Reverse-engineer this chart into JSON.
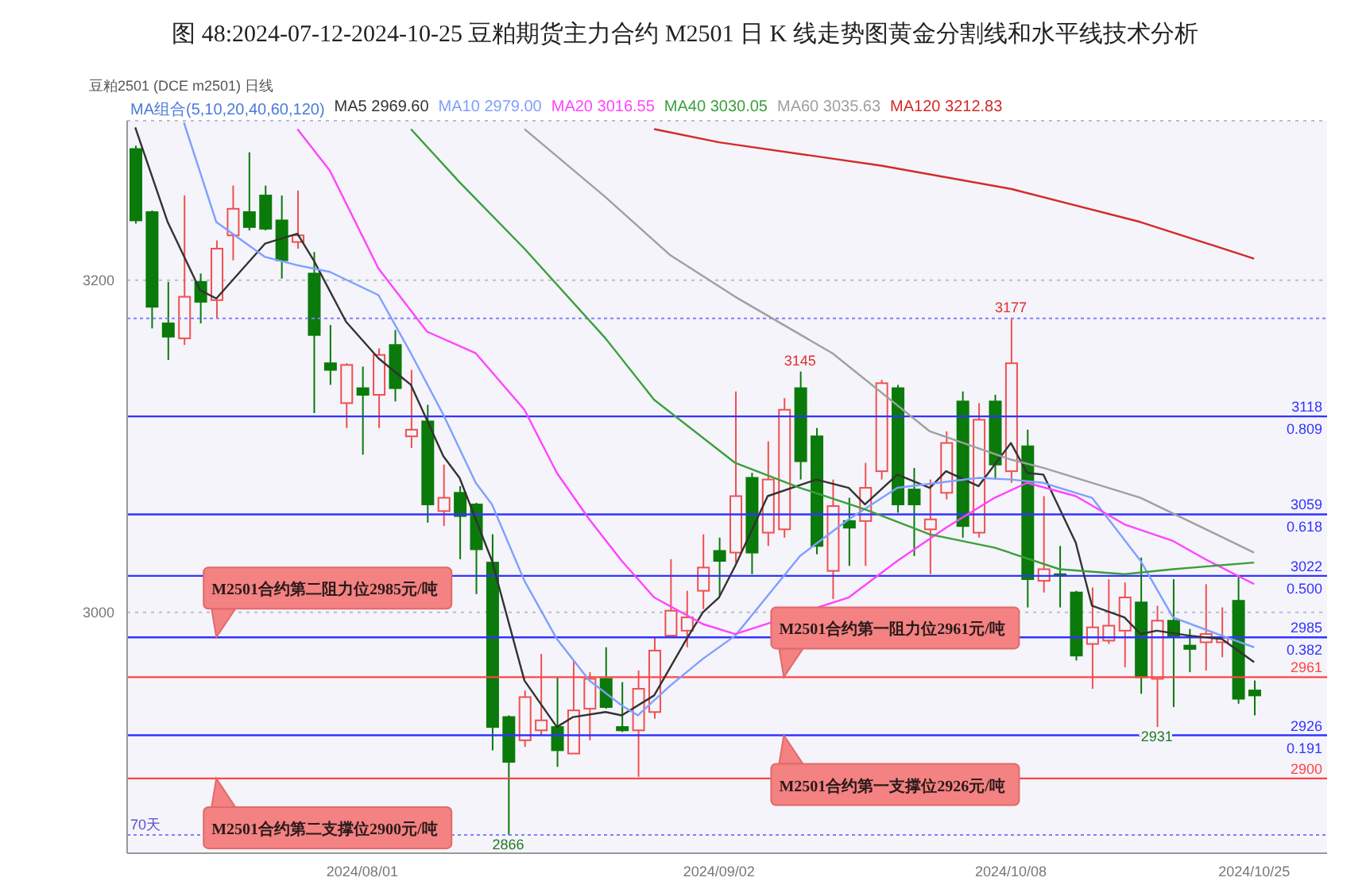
{
  "chart_data": {
    "type": "candlestick",
    "title": "图 48:2024-07-12-2024-10-25 豆粕期货主力合约 M2501 日 K 线走势图黄金分割线和水平线技术分析",
    "subtitle": "豆粕2501 (DCE m2501)  日线",
    "legend_title": "MA组合(5,10,20,40,60,120)",
    "legend": "top",
    "categories": [
      null,
      null,
      null,
      null,
      null,
      null,
      null,
      null,
      null,
      null,
      null,
      null,
      null,
      null,
      "2024/08/01",
      null,
      null,
      null,
      null,
      null,
      null,
      null,
      null,
      null,
      null,
      null,
      null,
      null,
      null,
      null,
      null,
      null,
      null,
      null,
      null,
      null,
      "2024/09/02",
      null,
      null,
      null,
      null,
      null,
      null,
      null,
      null,
      null,
      null,
      null,
      null,
      null,
      null,
      null,
      null,
      null,
      "2024/10/08",
      null,
      null,
      null,
      null,
      null,
      null,
      null,
      null,
      null,
      null,
      null,
      null,
      null,
      null,
      "2024/10/25"
    ],
    "ohlc": [
      [
        3279,
        3281,
        3234,
        3236
      ],
      [
        3241,
        3242,
        3171,
        3184
      ],
      [
        3174,
        3199,
        3152,
        3166
      ],
      [
        3165,
        3251,
        3161,
        3190
      ],
      [
        3199,
        3204,
        3174,
        3187
      ],
      [
        3188,
        3224,
        3177,
        3219
      ],
      [
        3227,
        3257,
        3212,
        3243
      ],
      [
        3241,
        3277,
        3230,
        3232
      ],
      [
        3251,
        3257,
        3230,
        3231
      ],
      [
        3236,
        3251,
        3201,
        3212
      ],
      [
        3223,
        3254,
        3219,
        3227
      ],
      [
        3204,
        3217,
        3120,
        3167
      ],
      [
        3150,
        3173,
        3137,
        3146
      ],
      [
        3126,
        3150,
        3111,
        3149
      ],
      [
        3135,
        3148,
        3095,
        3131
      ],
      [
        3131,
        3159,
        3111,
        3155
      ],
      [
        3161,
        3170,
        3127,
        3135
      ],
      [
        3106,
        3146,
        3099,
        3110
      ],
      [
        3115,
        3125,
        3054,
        3065
      ],
      [
        3061,
        3089,
        3052,
        3069
      ],
      [
        3072,
        3076,
        3032,
        3058
      ],
      [
        3065,
        3066,
        3011,
        3038
      ],
      [
        3030,
        3047,
        2917,
        2931
      ],
      [
        2937,
        2938,
        2866,
        2910
      ],
      [
        2923,
        2953,
        2919,
        2949
      ],
      [
        2929,
        2975,
        2926,
        2935
      ],
      [
        2931,
        2961,
        2907,
        2917
      ],
      [
        2915,
        2971,
        2915,
        2941
      ],
      [
        2942,
        2964,
        2923,
        2960
      ],
      [
        2960,
        2979,
        2942,
        2943
      ],
      [
        2931,
        2958,
        2928,
        2929
      ],
      [
        2929,
        2965,
        2901,
        2954
      ],
      [
        2940,
        2985,
        2936,
        2977
      ],
      [
        2986,
        3032,
        2985,
        3001
      ],
      [
        2989,
        3013,
        2979,
        2997
      ],
      [
        3013,
        3047,
        3002,
        3027
      ],
      [
        3037,
        3045,
        3010,
        3031
      ],
      [
        3036,
        3133,
        3030,
        3070
      ],
      [
        3081,
        3084,
        3023,
        3036
      ],
      [
        3048,
        3103,
        3040,
        3080
      ],
      [
        3050,
        3129,
        3045,
        3122
      ],
      [
        3135,
        3145,
        3080,
        3091
      ],
      [
        3106,
        3111,
        3035,
        3040
      ],
      [
        3025,
        3080,
        3008,
        3064
      ],
      [
        3055,
        3069,
        3028,
        3051
      ],
      [
        3055,
        3090,
        3028,
        3075
      ],
      [
        3085,
        3140,
        3080,
        3138
      ],
      [
        3135,
        3137,
        3060,
        3065
      ],
      [
        3074,
        3087,
        3034,
        3065
      ],
      [
        3050,
        3080,
        3023,
        3056
      ],
      [
        3072,
        3109,
        3068,
        3102
      ],
      [
        3127,
        3133,
        3045,
        3052
      ],
      [
        3048,
        3126,
        3045,
        3116
      ],
      [
        3127,
        3131,
        3080,
        3089
      ],
      [
        3085,
        3177,
        3078,
        3150
      ],
      [
        3100,
        3110,
        3003,
        3020
      ],
      [
        3019,
        3070,
        3012,
        3026
      ],
      [
        3023,
        3040,
        3003,
        3023
      ],
      [
        3012,
        3013,
        2971,
        2974
      ],
      [
        2981,
        3015,
        2954,
        2991
      ],
      [
        2983,
        3020,
        2981,
        2992
      ],
      [
        2989,
        3018,
        2967,
        3009
      ],
      [
        3006,
        3033,
        2951,
        2961
      ],
      [
        2960,
        3004,
        2931,
        2995
      ],
      [
        2995,
        3020,
        2943,
        2986
      ],
      [
        2980,
        2990,
        2964,
        2978
      ],
      [
        2982,
        3017,
        2965,
        2987
      ],
      [
        2982,
        3003,
        2973,
        2985
      ],
      [
        3007,
        3022,
        2945,
        2948
      ],
      [
        2953,
        2959,
        2938,
        2950
      ]
    ],
    "series": [
      {
        "type": "line",
        "name": "MA5 2969.60",
        "color": "#333333",
        "values": [
          3292,
          null,
          3235,
          null,
          3194,
          3189,
          3200,
          null,
          3222,
          null,
          3228,
          3212,
          null,
          3175,
          null,
          3153,
          null,
          3137,
          null,
          3094,
          3081,
          null,
          3031,
          null,
          2959,
          null,
          2931,
          2937,
          null,
          2940,
          2938,
          null,
          2950,
          null,
          2984,
          3000,
          3009,
          3028,
          null,
          3070,
          null,
          null,
          3080,
          null,
          3075,
          3065,
          null,
          3083,
          null,
          3075,
          3085,
          null,
          3076,
          null,
          3102,
          3084,
          3083,
          null,
          3042,
          3004,
          null,
          2997,
          2987,
          2989,
          null,
          2986,
          null,
          2984,
          null,
          2970
        ]
      },
      {
        "type": "line",
        "name": "MA10 2979.00",
        "color": "#7f9fff",
        "values": [
          null,
          null,
          null,
          3295,
          null,
          3235,
          null,
          null,
          3214,
          null,
          3209,
          null,
          3205,
          null,
          null,
          3191,
          null,
          3156,
          null,
          3119,
          null,
          3078,
          3065,
          null,
          3019,
          null,
          2984,
          null,
          2959,
          null,
          2944,
          2938,
          null,
          2956,
          null,
          2972,
          null,
          2986,
          null,
          null,
          null,
          3034,
          null,
          null,
          3056,
          null,
          null,
          3075,
          null,
          null,
          null,
          null,
          3081,
          null,
          3080,
          null,
          3078,
          null,
          null,
          3069,
          null,
          null,
          3031,
          null,
          2997,
          null,
          null,
          2986,
          null,
          2979
        ]
      },
      {
        "type": "line",
        "name": "MA20 3016.55",
        "color": "#ff44ff",
        "values": [
          null,
          null,
          null,
          null,
          null,
          null,
          null,
          null,
          null,
          null,
          3291,
          null,
          3266,
          null,
          null,
          3207,
          null,
          null,
          3169,
          null,
          null,
          3156,
          null,
          null,
          3122,
          null,
          3084,
          null,
          3056,
          null,
          3031,
          null,
          3009,
          null,
          null,
          2993,
          null,
          2987,
          null,
          null,
          null,
          null,
          null,
          null,
          3009,
          null,
          null,
          3031,
          null,
          null,
          3051,
          null,
          null,
          3069,
          null,
          3078,
          null,
          null,
          3070,
          null,
          null,
          3053,
          null,
          null,
          3043,
          null,
          3032,
          null,
          null,
          3017
        ]
      },
      {
        "type": "line",
        "name": "MA40 3030.05",
        "color": "#3c9f3c",
        "values": [
          null,
          null,
          null,
          null,
          null,
          null,
          null,
          null,
          null,
          null,
          null,
          null,
          null,
          null,
          null,
          null,
          null,
          3291,
          null,
          null,
          3259,
          null,
          null,
          null,
          3219,
          null,
          null,
          null,
          null,
          3165,
          null,
          null,
          3128,
          null,
          null,
          null,
          null,
          3090,
          null,
          null,
          null,
          3075,
          null,
          null,
          null,
          3062,
          null,
          null,
          null,
          3047,
          null,
          null,
          null,
          3039,
          null,
          null,
          null,
          3026,
          null,
          null,
          null,
          3023,
          null,
          null,
          3026,
          null,
          null,
          null,
          null,
          3030
        ]
      },
      {
        "type": "line",
        "name": "MA60 3035.63",
        "color": "#a0a0a0",
        "values": [
          null,
          null,
          null,
          null,
          null,
          null,
          null,
          null,
          null,
          null,
          null,
          null,
          null,
          null,
          null,
          null,
          null,
          null,
          null,
          null,
          null,
          null,
          null,
          null,
          3291,
          null,
          null,
          null,
          null,
          3250,
          null,
          null,
          null,
          3215,
          null,
          null,
          null,
          3190,
          null,
          null,
          null,
          null,
          null,
          3156,
          null,
          null,
          null,
          null,
          null,
          3109,
          null,
          null,
          null,
          null,
          3092,
          null,
          3087,
          null,
          null,
          null,
          null,
          null,
          3069,
          null,
          null,
          null,
          null,
          null,
          null,
          3036
        ]
      },
      {
        "type": "line",
        "name": "MA120 3212.83",
        "color": "#d42a2a",
        "values": [
          null,
          null,
          null,
          null,
          null,
          null,
          null,
          null,
          null,
          null,
          null,
          null,
          null,
          null,
          null,
          null,
          null,
          null,
          null,
          null,
          null,
          null,
          null,
          null,
          null,
          null,
          null,
          null,
          null,
          null,
          null,
          null,
          3291,
          null,
          null,
          null,
          3283,
          null,
          null,
          null,
          null,
          null,
          null,
          null,
          null,
          null,
          3269,
          null,
          null,
          null,
          null,
          null,
          null,
          null,
          3255,
          null,
          null,
          null,
          null,
          null,
          null,
          null,
          3235,
          null,
          null,
          null,
          null,
          null,
          null,
          3213
        ]
      }
    ],
    "ylim": [
      2855,
      3296
    ],
    "yticks": [
      3000,
      3200
    ],
    "grid": "y",
    "ref_lines": [
      {
        "axis": "y",
        "value": 3177,
        "color": "#8080ff",
        "line_style": "dotted"
      },
      {
        "axis": "y",
        "value": 3118,
        "label": "3118 0.809",
        "color": "#3333ff"
      },
      {
        "axis": "y",
        "value": 3059,
        "label": "3059 0.618",
        "color": "#3333ff"
      },
      {
        "axis": "y",
        "value": 3022,
        "label": "3022 0.500",
        "color": "#3333ff"
      },
      {
        "axis": "y",
        "value": 2985,
        "label": "2985 0.382",
        "color": "#3333ff"
      },
      {
        "axis": "y",
        "value": 2961,
        "label": "2961",
        "color": "#ff4444"
      },
      {
        "axis": "y",
        "value": 2926,
        "label": "2926 0.191",
        "color": "#3333ff"
      },
      {
        "axis": "y",
        "value": 2900,
        "label": "2900",
        "color": "#ff4444"
      },
      {
        "axis": "y",
        "value": 2866,
        "color": "#8080ff",
        "line_style": "dotted"
      }
    ],
    "annotations": [
      {
        "text": "M2501合约第二阻力位2985元/吨",
        "y": 2985
      },
      {
        "text": "M2501合约第二支撑位2900元/吨",
        "y": 2900
      },
      {
        "text": "M2501合约第一阻力位2961元/吨",
        "y": 2961
      },
      {
        "text": "M2501合约第一支撑位2926元/吨",
        "y": 2926
      },
      {
        "text": "3145",
        "y": 3145
      },
      {
        "text": "3177",
        "y": 3177
      },
      {
        "text": "2931",
        "y": 2931
      },
      {
        "text": "2866",
        "y": 2866
      },
      "70天"
    ]
  }
}
